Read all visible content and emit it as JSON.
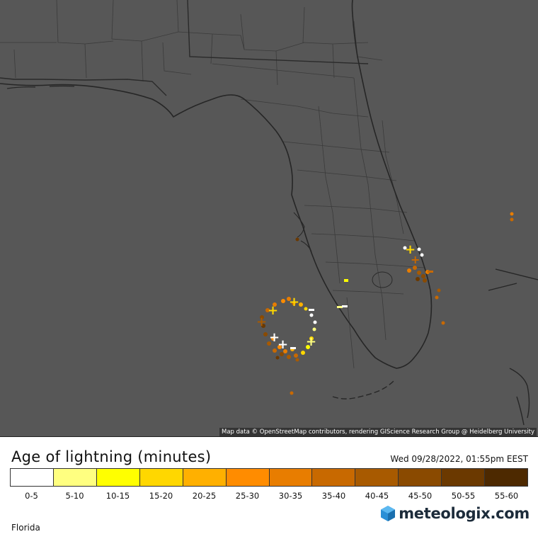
{
  "map": {
    "attribution": "Map data © OpenStreetMap contributors, rendering GIScience Research Group @ Heidelberg University",
    "background_color": "#575757",
    "land_outline_color": "#2b2b2b",
    "county_line_color": "#3a3a3a"
  },
  "legend": {
    "title": "Age of lightning (minutes)",
    "timestamp": "Wed 09/28/2022, 01:55pm EEST",
    "region": "Florida",
    "brand": "meteologix.com",
    "brand_icon": "hexagon-logo-icon",
    "classes": [
      {
        "label": "0-5",
        "color": "#ffffff"
      },
      {
        "label": "5-10",
        "color": "#ffff80"
      },
      {
        "label": "10-15",
        "color": "#ffff00"
      },
      {
        "label": "15-20",
        "color": "#ffd700"
      },
      {
        "label": "20-25",
        "color": "#ffb000"
      },
      {
        "label": "25-30",
        "color": "#ff8c00"
      },
      {
        "label": "30-35",
        "color": "#e87d00"
      },
      {
        "label": "35-40",
        "color": "#c86900"
      },
      {
        "label": "40-45",
        "color": "#a85a00"
      },
      {
        "label": "45-50",
        "color": "#8a4a00"
      },
      {
        "label": "50-55",
        "color": "#6b3900"
      },
      {
        "label": "55-60",
        "color": "#4d2900"
      }
    ]
  }
}
